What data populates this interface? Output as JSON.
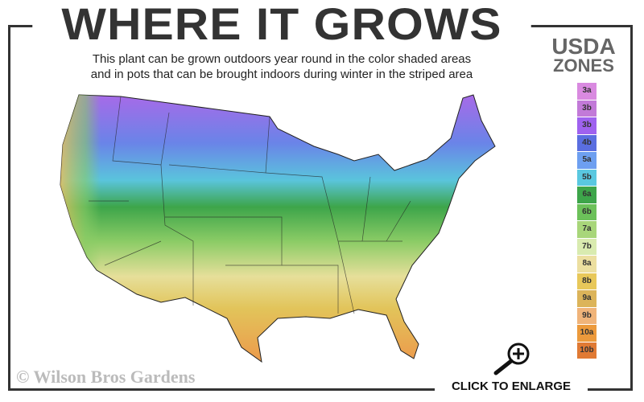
{
  "header": {
    "title": "WHERE IT GROWS",
    "subtitle_line1": "This plant can be grown outdoors year round in the color shaded areas",
    "subtitle_line2": "and in pots that can be brought indoors during winter in the striped area"
  },
  "legend": {
    "title_line1": "USDA",
    "title_line2": "ZONES",
    "zones": [
      {
        "label": "3a",
        "color": "#d98ae0"
      },
      {
        "label": "3b",
        "color": "#c27ad8"
      },
      {
        "label": "3b",
        "color": "#9f62ef"
      },
      {
        "label": "4b",
        "color": "#5a6ee0"
      },
      {
        "label": "5a",
        "color": "#6d9ff0"
      },
      {
        "label": "5b",
        "color": "#5ac8e0"
      },
      {
        "label": "6a",
        "color": "#3da54a"
      },
      {
        "label": "6b",
        "color": "#6cc15a"
      },
      {
        "label": "7a",
        "color": "#a8d67a"
      },
      {
        "label": "7b",
        "color": "#d9ebb0"
      },
      {
        "label": "8a",
        "color": "#ecdfa0"
      },
      {
        "label": "8b",
        "color": "#e8c85a"
      },
      {
        "label": "9a",
        "color": "#dcb45a"
      },
      {
        "label": "9b",
        "color": "#f0b47a"
      },
      {
        "label": "10a",
        "color": "#ec9a3c"
      },
      {
        "label": "10b",
        "color": "#e07a34"
      }
    ]
  },
  "footer": {
    "copyright": "© Wilson Bros Gardens",
    "enlarge_label": "CLICK TO ENLARGE",
    "enlarge_icon": "magnifier-plus-icon"
  }
}
